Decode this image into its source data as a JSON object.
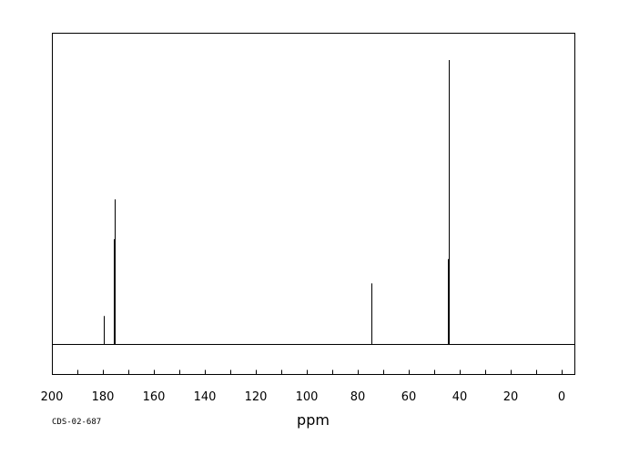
{
  "chart_data": {
    "type": "line",
    "xlabel": "ppm",
    "xlim": [
      200,
      -5
    ],
    "x_reversed": true,
    "x_ticks_major": [
      200,
      180,
      160,
      140,
      120,
      100,
      80,
      60,
      40,
      20,
      0
    ],
    "x_ticks_minor_step": 10,
    "ylim": [
      0,
      1
    ],
    "baseline": 0.0,
    "peaks": [
      {
        "ppm": 179.6,
        "intensity": 0.1
      },
      {
        "ppm": 175.8,
        "intensity": 0.37
      },
      {
        "ppm": 175.5,
        "intensity": 0.51
      },
      {
        "ppm": 74.8,
        "intensity": 0.215
      },
      {
        "ppm": 74.5,
        "intensity": 0.155
      },
      {
        "ppm": 44.6,
        "intensity": 0.3
      },
      {
        "ppm": 44.3,
        "intensity": 1.0
      }
    ],
    "grid": false,
    "legend": "none"
  },
  "footer": {
    "code": "CDS-02-687"
  }
}
